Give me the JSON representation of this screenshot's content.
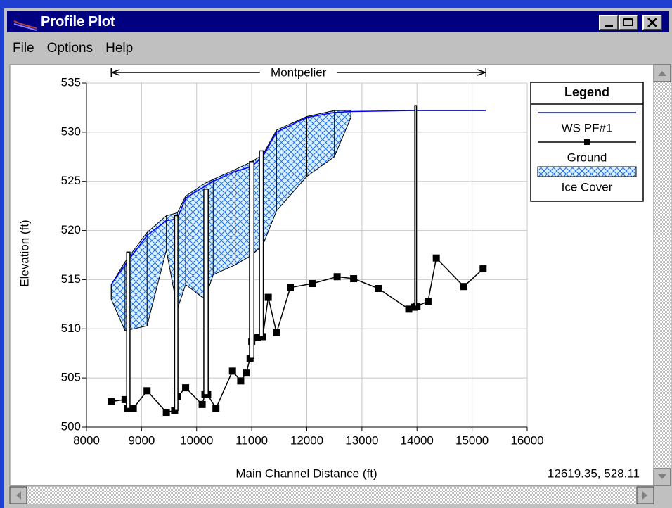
{
  "window": {
    "title": "Profile Plot",
    "menu": [
      "File",
      "Options",
      "Help"
    ],
    "status": "12619.35, 528.11"
  },
  "chart_data": {
    "type": "line",
    "annotation": "Montpelier",
    "annotation_range": [
      8450,
      15250
    ],
    "xlabel": "Main Channel Distance (ft)",
    "ylabel": "Elevation (ft)",
    "xlim": [
      8000,
      16000
    ],
    "xticks": [
      8000,
      9000,
      10000,
      11000,
      12000,
      13000,
      14000,
      15000,
      16000
    ],
    "ylim": [
      500,
      535
    ],
    "yticks": [
      500,
      505,
      510,
      515,
      520,
      525,
      530,
      535
    ],
    "grid": true,
    "legend_title": "Legend",
    "legend": "right",
    "series": [
      {
        "name": "WS  PF#1",
        "kind": "line",
        "color": "#0000ff",
        "x": [
          8450,
          8700,
          9100,
          9450,
          9650,
          9800,
          10150,
          10300,
          10700,
          11000,
          11200,
          11450,
          12000,
          12500,
          12800,
          13900,
          15250
        ],
        "values": [
          514.5,
          516.5,
          519.5,
          521.0,
          521.2,
          523.3,
          524.5,
          525.0,
          526.0,
          526.5,
          527.5,
          530.0,
          531.5,
          532.0,
          532.1,
          532.2,
          532.2
        ]
      },
      {
        "name": "Ground",
        "kind": "marker-line",
        "color": "#000000",
        "x": [
          8450,
          8700,
          8750,
          8850,
          9100,
          9450,
          9600,
          9650,
          9800,
          10100,
          10150,
          10200,
          10350,
          10650,
          10800,
          10900,
          10970,
          11000,
          11100,
          11200,
          11300,
          11450,
          11700,
          12100,
          12550,
          12850,
          13300,
          13850,
          13950,
          14000,
          14200,
          14350,
          14850,
          15200
        ],
        "values": [
          502.6,
          502.8,
          501.9,
          501.9,
          503.7,
          501.5,
          501.7,
          503.1,
          504.0,
          502.3,
          503.3,
          503.3,
          501.9,
          505.7,
          504.7,
          505.5,
          507.0,
          508.7,
          509.1,
          509.2,
          513.2,
          509.6,
          514.2,
          514.6,
          515.3,
          515.1,
          514.1,
          512.0,
          512.2,
          512.3,
          512.8,
          517.2,
          514.3,
          516.1
        ]
      },
      {
        "name": "Ice Cover",
        "kind": "band",
        "color": "#2060e0",
        "x": [
          8450,
          8700,
          9100,
          9450,
          9650,
          9800,
          10150,
          10300,
          10700,
          11000,
          11200,
          11450,
          12000,
          12500,
          12800
        ],
        "values": [
          514.5,
          516.8,
          519.8,
          521.5,
          521.8,
          523.5,
          524.8,
          525.2,
          526.2,
          527.0,
          527.7,
          530.2,
          531.6,
          532.2,
          532.2
        ],
        "bottom": [
          513.0,
          509.8,
          510.3,
          518.0,
          512.0,
          514.5,
          513.0,
          515.5,
          516.5,
          517.5,
          518.5,
          522.0,
          525.5,
          527.5,
          531.5
        ]
      }
    ],
    "structures": [
      {
        "x": 8730,
        "x2": 8790,
        "top": 517.8,
        "bottom": 501.9
      },
      {
        "x": 9600,
        "x2": 9660,
        "top": 521.5,
        "bottom": 501.7
      },
      {
        "x": 10130,
        "x2": 10210,
        "top": 524.2,
        "bottom": 503.3
      },
      {
        "x": 10960,
        "x2": 11040,
        "top": 527.0,
        "bottom": 507.0
      },
      {
        "x": 11140,
        "x2": 11210,
        "top": 528.1,
        "bottom": 509.2
      },
      {
        "x": 13960,
        "x2": 13990,
        "top": 532.7,
        "bottom": 512.3
      }
    ]
  }
}
